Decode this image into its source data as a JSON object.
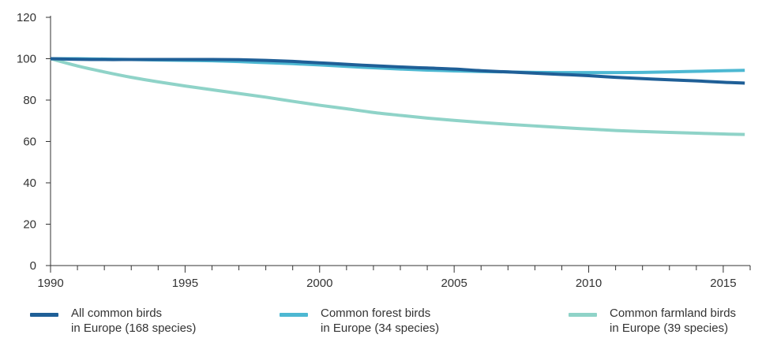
{
  "chart_data": {
    "type": "line",
    "title": "",
    "xlabel": "",
    "ylabel": "",
    "xlim": [
      1990,
      2016
    ],
    "ylim": [
      0,
      120
    ],
    "x_ticks": [
      "1990",
      "1995",
      "2000",
      "2005",
      "2010",
      "2015"
    ],
    "y_ticks": [
      "0",
      "20",
      "40",
      "60",
      "80",
      "100",
      "120"
    ],
    "grid": false,
    "legend_position": "bottom",
    "x": [
      1990,
      1991,
      1992,
      1993,
      1994,
      1995,
      1996,
      1997,
      1998,
      1999,
      2000,
      2001,
      2002,
      2003,
      2004,
      2005,
      2006,
      2007,
      2008,
      2009,
      2010,
      2011,
      2012,
      2013,
      2014,
      2015,
      2015.8
    ],
    "series": [
      {
        "name_lines": [
          "All common birds",
          "in Europe (168 species)"
        ],
        "color": "#1f5f97",
        "values": [
          100,
          99.7,
          99.6,
          99.6,
          99.6,
          99.6,
          99.6,
          99.5,
          99.2,
          98.7,
          98.0,
          97.3,
          96.6,
          96.0,
          95.5,
          95.0,
          94.2,
          93.6,
          93.0,
          92.4,
          91.8,
          91.0,
          90.4,
          89.8,
          89.3,
          88.6,
          88.2
        ]
      },
      {
        "name_lines": [
          "Common forest birds",
          "in Europe (34 species)"
        ],
        "color": "#4db8d2",
        "values": [
          100,
          100,
          99.8,
          99.6,
          99.4,
          99.2,
          99.0,
          98.6,
          98.1,
          97.6,
          97.0,
          96.3,
          95.6,
          95.0,
          94.5,
          94.1,
          93.8,
          93.6,
          93.4,
          93.3,
          93.3,
          93.3,
          93.4,
          93.6,
          93.9,
          94.2,
          94.4
        ]
      },
      {
        "name_lines": [
          "Common farmland birds",
          "in Europe (39 species)"
        ],
        "color": "#8fd3c8",
        "values": [
          100,
          96.5,
          93.6,
          91.0,
          88.8,
          86.8,
          85.0,
          83.2,
          81.4,
          79.4,
          77.5,
          75.8,
          74.0,
          72.6,
          71.3,
          70.2,
          69.2,
          68.3,
          67.5,
          66.7,
          66.0,
          65.3,
          64.8,
          64.4,
          64.0,
          63.6,
          63.4
        ]
      }
    ]
  }
}
